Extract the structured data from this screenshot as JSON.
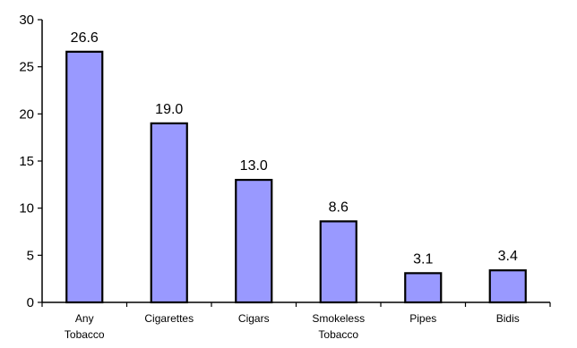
{
  "chart_data": {
    "type": "bar",
    "title": "",
    "xlabel": "",
    "ylabel": "",
    "ylim": [
      0,
      30
    ],
    "y_ticks": [
      0,
      5,
      10,
      15,
      20,
      25,
      30
    ],
    "categories": [
      [
        "Any",
        "Tobacco"
      ],
      [
        "Cigarettes"
      ],
      [
        "Cigars"
      ],
      [
        "Smokeless",
        "Tobacco"
      ],
      [
        "Pipes"
      ],
      [
        "Bidis"
      ]
    ],
    "values": [
      26.6,
      19.0,
      13.0,
      8.6,
      3.1,
      3.4
    ],
    "value_labels": [
      "26.6",
      "19.0",
      "13.0",
      "8.6",
      "3.1",
      "3.4"
    ],
    "grid": false,
    "legend": "none",
    "colors": {
      "bar_fill": "#9999ff",
      "bar_stroke": "#000000",
      "axis": "#000000",
      "background": "#ffffff"
    }
  }
}
